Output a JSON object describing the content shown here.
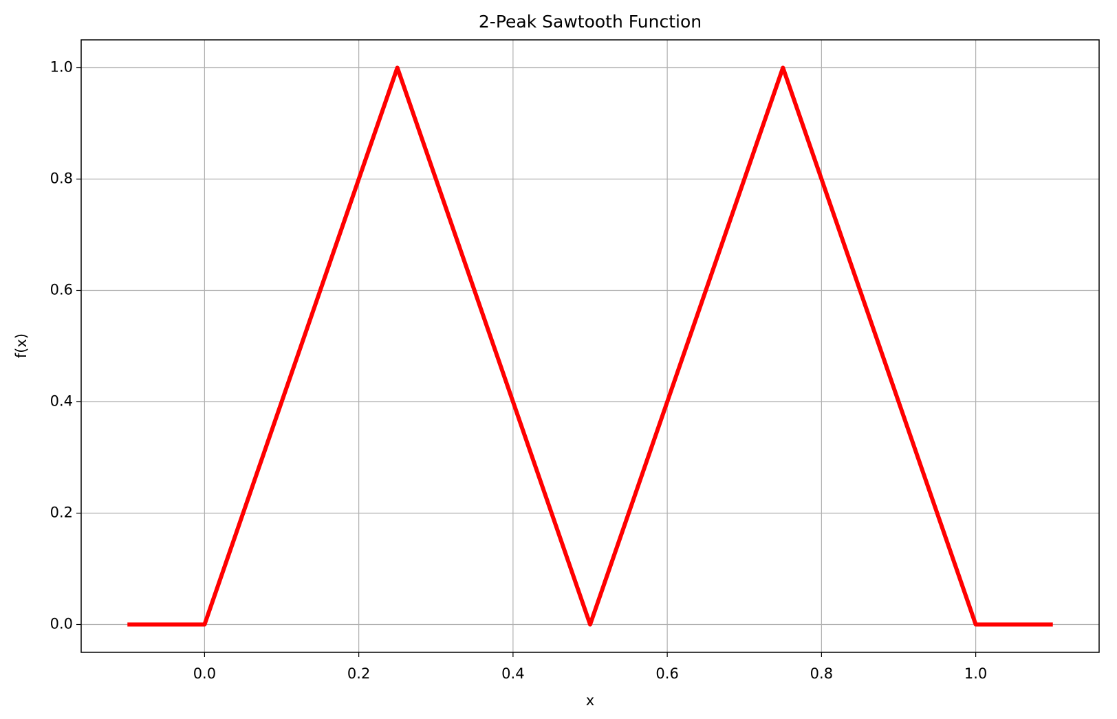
{
  "chart_data": {
    "type": "line",
    "title": "2-Peak Sawtooth Function",
    "x_label": "x",
    "y_label": "f(x)",
    "x": [
      -0.1,
      0,
      0.25,
      0.5,
      0.75,
      1.0,
      1.1
    ],
    "series": [
      {
        "color": "#ff0000",
        "values": [
          0,
          0,
          1,
          0,
          1,
          0,
          0
        ]
      }
    ],
    "xlim": [
      -0.16,
      1.16
    ],
    "ylim": [
      -0.05,
      1.05
    ],
    "xticks": [
      {
        "value": 0,
        "label": "0.0"
      },
      0.2,
      0.4,
      0.6,
      0.8,
      {
        "value": 1,
        "label": "1.0"
      }
    ],
    "yticks": [
      {
        "value": 0,
        "label": "0.0"
      },
      0.2,
      0.4,
      0.6,
      0.8,
      {
        "value": 1,
        "label": "1.0"
      }
    ],
    "grid": true
  }
}
